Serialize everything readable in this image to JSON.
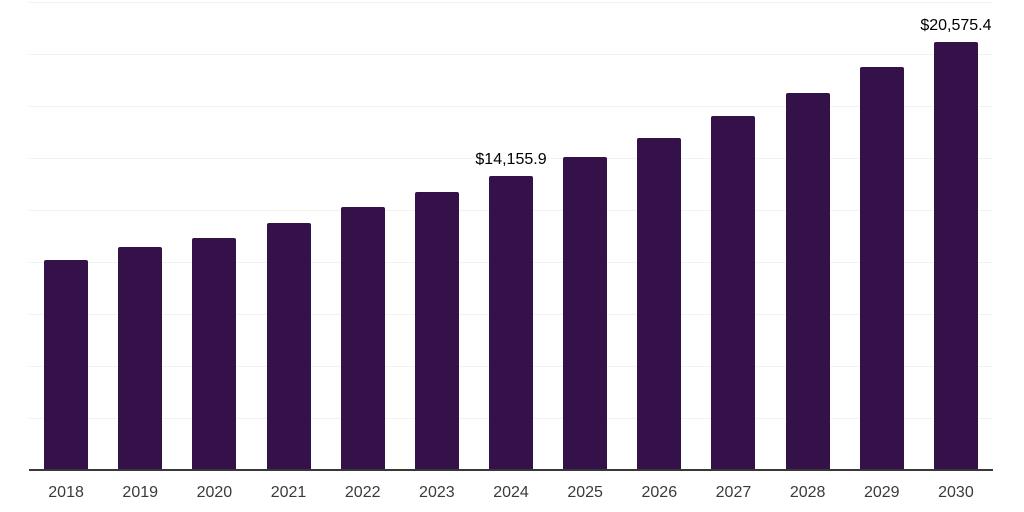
{
  "chart_data": {
    "type": "bar",
    "title": "",
    "xlabel": "",
    "ylabel": "",
    "categories": [
      "2018",
      "2019",
      "2020",
      "2021",
      "2022",
      "2023",
      "2024",
      "2025",
      "2026",
      "2027",
      "2028",
      "2029",
      "2030"
    ],
    "values": [
      10100,
      10740,
      11170,
      11890,
      12630,
      13380,
      14155.9,
      15050,
      15950,
      17030,
      18110,
      19360,
      20575.4
    ],
    "data_labels": [
      null,
      null,
      null,
      null,
      null,
      null,
      "$14,155.9",
      null,
      null,
      null,
      null,
      null,
      "$20,575.4"
    ],
    "ylim": [
      0,
      22500
    ],
    "gridline_step": 2500,
    "grid": true,
    "legend": false,
    "colors": {
      "bar": "#351149",
      "gridline": "#f2f2f2",
      "axis": "#383838",
      "tick_label": "#3a3a3a",
      "data_label": "#000000"
    }
  }
}
